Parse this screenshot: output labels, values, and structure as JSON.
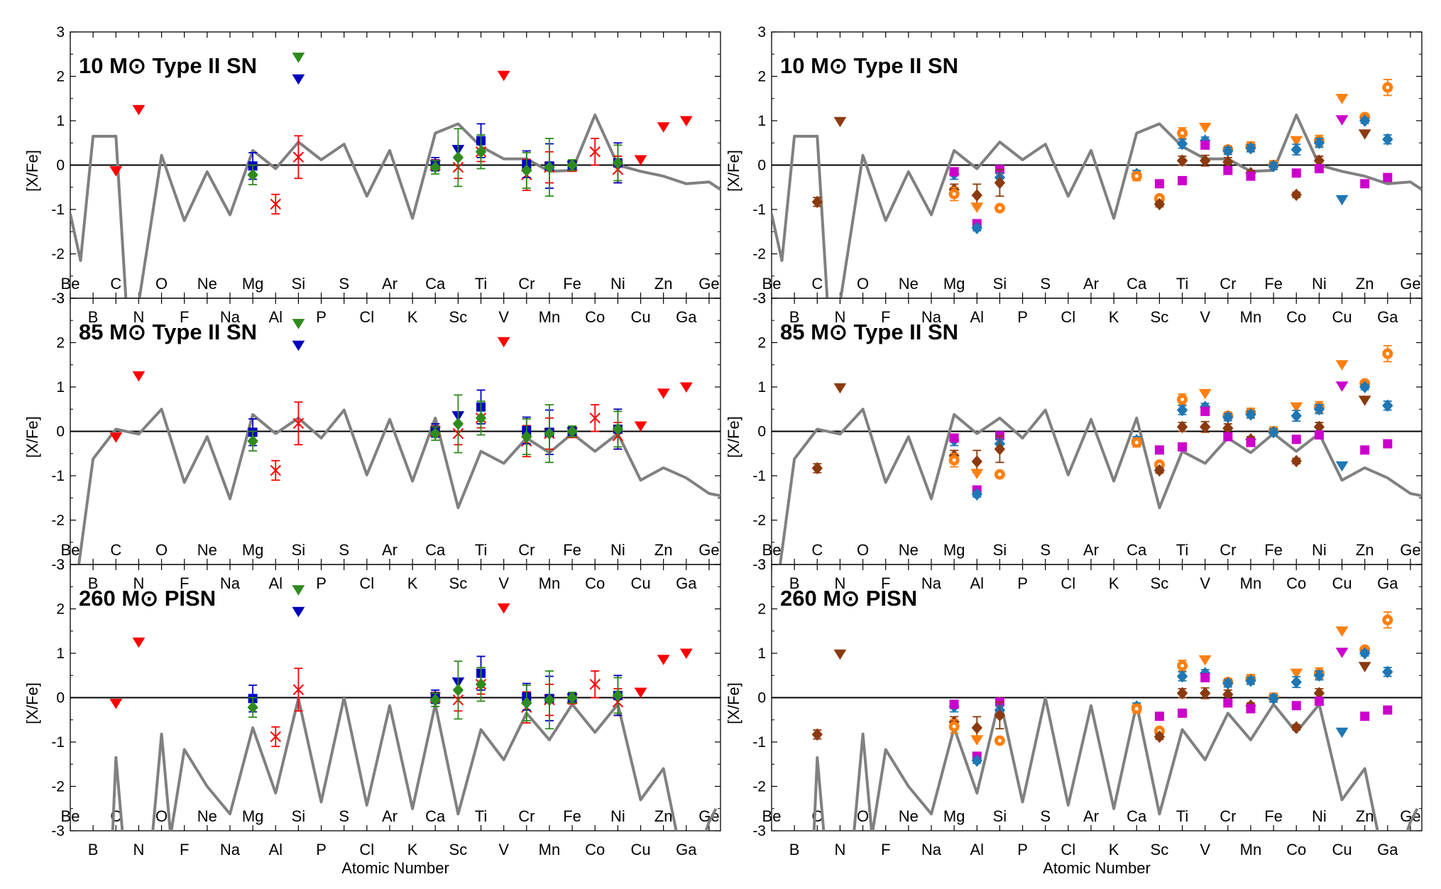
{
  "chart_data": [
    {
      "type": "line",
      "panel": "left-top",
      "title": "10 M⊙ Type II SN",
      "ylabel": "[X/Fe]",
      "xlabel": "",
      "ylim": [
        -3,
        3
      ],
      "xlim": [
        4,
        32.5
      ],
      "yticks": [
        "3",
        "2",
        "1",
        "0",
        "-1",
        "-2",
        "-3"
      ],
      "element_labels": [
        {
          "z": 4,
          "text": "Be"
        },
        {
          "z": 5,
          "text": "B"
        },
        {
          "z": 6,
          "text": "C"
        },
        {
          "z": 7,
          "text": "N"
        },
        {
          "z": 8,
          "text": "O"
        },
        {
          "z": 9,
          "text": "F"
        },
        {
          "z": 10,
          "text": "Ne"
        },
        {
          "z": 11,
          "text": "Na"
        },
        {
          "z": 12,
          "text": "Mg"
        },
        {
          "z": 13,
          "text": "Al"
        },
        {
          "z": 14,
          "text": "Si"
        },
        {
          "z": 15,
          "text": "P"
        },
        {
          "z": 16,
          "text": "S"
        },
        {
          "z": 17,
          "text": "Cl"
        },
        {
          "z": 18,
          "text": "Ar"
        },
        {
          "z": 19,
          "text": "K"
        },
        {
          "z": 20,
          "text": "Ca"
        },
        {
          "z": 21,
          "text": "Sc"
        },
        {
          "z": 22,
          "text": "Ti"
        },
        {
          "z": 23,
          "text": "V"
        },
        {
          "z": 24,
          "text": "Cr"
        },
        {
          "z": 25,
          "text": "Mn"
        },
        {
          "z": 26,
          "text": "Fe"
        },
        {
          "z": 27,
          "text": "Co"
        },
        {
          "z": 28,
          "text": "Ni"
        },
        {
          "z": 29,
          "text": "Cu"
        },
        {
          "z": 30,
          "text": "Zn"
        },
        {
          "z": 31,
          "text": "Ga"
        },
        {
          "z": 32,
          "text": "Ge"
        }
      ],
      "model": {
        "x": [
          4,
          4.45,
          5,
          6,
          6.45,
          7,
          8,
          9,
          10,
          11,
          12,
          13,
          14,
          15,
          16,
          17,
          18,
          19,
          20,
          21,
          22,
          23,
          24,
          25,
          26,
          27,
          28,
          29,
          30,
          31,
          32,
          32.5
        ],
        "y": [
          -1.1,
          -2.15,
          0.65,
          0.65,
          -3.1,
          -3.1,
          0.22,
          -1.25,
          -0.15,
          -1.12,
          0.33,
          -0.08,
          0.52,
          0.12,
          0.47,
          -0.7,
          0.33,
          -1.2,
          0.72,
          0.93,
          0.42,
          0.14,
          0.14,
          -0.14,
          -0.12,
          1.13,
          0.0,
          -0.14,
          -0.25,
          -0.42,
          -0.38,
          -0.55
        ]
      },
      "observations": [
        {
          "marker": "tri-down",
          "color": "#ff0000",
          "z": 6,
          "y": -0.13,
          "err": 0
        },
        {
          "marker": "tri-down",
          "color": "#ff0000",
          "z": 7,
          "y": 1.25,
          "err": 0
        },
        {
          "marker": "tri-down",
          "color": "#ff0000",
          "z": 23,
          "y": 2.02,
          "err": 0
        },
        {
          "marker": "tri-down",
          "color": "#ff0000",
          "z": 29,
          "y": 0.12,
          "err": 0
        },
        {
          "marker": "tri-down",
          "color": "#ff0000",
          "z": 30,
          "y": 0.86,
          "err": 0
        },
        {
          "marker": "tri-down",
          "color": "#ff0000",
          "z": 31,
          "y": 1.0,
          "err": 0
        },
        {
          "marker": "tri-down",
          "color": "#2e8b1e",
          "z": 14,
          "y": 2.43,
          "err": 0
        },
        {
          "marker": "tri-down",
          "color": "#0000bb",
          "z": 14,
          "y": 1.94,
          "err": 0
        },
        {
          "marker": "x",
          "color": "#ff0000",
          "z": 13,
          "y": -0.88,
          "err": 0.22
        },
        {
          "marker": "x",
          "color": "#ff0000",
          "z": 14,
          "y": 0.18,
          "err": 0.48
        },
        {
          "marker": "x",
          "color": "#ff0000",
          "z": 20,
          "y": 0.0,
          "err": 0.12
        },
        {
          "marker": "x",
          "color": "#ff0000",
          "z": 21,
          "y": -0.05,
          "err": 0.25
        },
        {
          "marker": "x",
          "color": "#ff0000",
          "z": 22,
          "y": 0.3,
          "err": 0.22
        },
        {
          "marker": "x",
          "color": "#ff0000",
          "z": 24,
          "y": -0.22,
          "err": 0.35
        },
        {
          "marker": "x",
          "color": "#ff0000",
          "z": 25,
          "y": -0.05,
          "err": 0.35
        },
        {
          "marker": "x",
          "color": "#ff0000",
          "z": 26,
          "y": -0.02,
          "err": 0.12
        },
        {
          "marker": "x",
          "color": "#ff0000",
          "z": 27,
          "y": 0.3,
          "err": 0.3
        },
        {
          "marker": "x",
          "color": "#ff0000",
          "z": 28,
          "y": -0.1,
          "err": 0.3
        },
        {
          "marker": "square",
          "color": "#0000bb",
          "z": 12,
          "y": -0.02,
          "err": 0.3
        },
        {
          "marker": "square",
          "color": "#0000bb",
          "z": 20,
          "y": 0.02,
          "err": 0.15
        },
        {
          "marker": "tri-down",
          "color": "#0000bb",
          "z": 21,
          "y": 0.35,
          "err": 0
        },
        {
          "marker": "square",
          "color": "#0000bb",
          "z": 22,
          "y": 0.55,
          "err": 0.38
        },
        {
          "marker": "square",
          "color": "#0000bb",
          "z": 24,
          "y": 0.02,
          "err": 0.3
        },
        {
          "marker": "square",
          "color": "#0000bb",
          "z": 25,
          "y": -0.02,
          "err": 0.5
        },
        {
          "marker": "square",
          "color": "#0000bb",
          "z": 26,
          "y": 0.0,
          "err": 0.1
        },
        {
          "marker": "square",
          "color": "#0000bb",
          "z": 28,
          "y": 0.05,
          "err": 0.45
        },
        {
          "marker": "diamond",
          "color": "#2e8b1e",
          "z": 12,
          "y": -0.22,
          "err": 0.22
        },
        {
          "marker": "diamond",
          "color": "#2e8b1e",
          "z": 20,
          "y": -0.05,
          "err": 0.15
        },
        {
          "marker": "diamond",
          "color": "#2e8b1e",
          "z": 21,
          "y": 0.17,
          "err": 0.65
        },
        {
          "marker": "diamond",
          "color": "#2e8b1e",
          "z": 22,
          "y": 0.3,
          "err": 0.38
        },
        {
          "marker": "diamond",
          "color": "#2e8b1e",
          "z": 24,
          "y": -0.12,
          "err": 0.4
        },
        {
          "marker": "diamond",
          "color": "#2e8b1e",
          "z": 25,
          "y": -0.05,
          "err": 0.65
        },
        {
          "marker": "diamond",
          "color": "#2e8b1e",
          "z": 26,
          "y": 0.0,
          "err": 0.12
        },
        {
          "marker": "diamond",
          "color": "#2e8b1e",
          "z": 28,
          "y": 0.05,
          "err": 0.4
        }
      ]
    },
    {
      "type": "line",
      "panel": "left-middle",
      "title": "85 M⊙ Type II SN",
      "ylabel": "[X/Fe]",
      "ylim": [
        -3,
        3
      ],
      "model": {
        "x": [
          4,
          4.35,
          5,
          6,
          7,
          8,
          9,
          10,
          11,
          12,
          13,
          14,
          15,
          16,
          17,
          18,
          19,
          20,
          21,
          22,
          23,
          24,
          25,
          26,
          27,
          28,
          29,
          30,
          31,
          32,
          32.5
        ],
        "y": [
          -3.1,
          -3.1,
          -0.62,
          0.05,
          -0.06,
          0.5,
          -1.15,
          -0.12,
          -1.52,
          0.38,
          -0.05,
          0.3,
          -0.15,
          0.48,
          -0.98,
          0.27,
          -1.12,
          0.3,
          -1.72,
          -0.45,
          -0.72,
          -0.15,
          -0.48,
          -0.05,
          -0.45,
          -0.05,
          -1.1,
          -0.82,
          -1.05,
          -1.4,
          -1.45
        ]
      }
    },
    {
      "type": "line",
      "panel": "left-bottom",
      "title": "260 M⊙ PISN",
      "ylabel": "[X/Fe]",
      "xlabel": "Atomic Number",
      "ylim": [
        -3,
        3
      ],
      "model": {
        "x": [
          5.85,
          6,
          6.3,
          7.6,
          8,
          8.4,
          9,
          10,
          11,
          12,
          13,
          14,
          15,
          16,
          17,
          18,
          19,
          20,
          21,
          22,
          23,
          24,
          25,
          26,
          27,
          28,
          29,
          30,
          30.6,
          31.8,
          32,
          32.3
        ],
        "y": [
          -3.1,
          -1.35,
          -3.1,
          -3.1,
          -0.82,
          -3.1,
          -1.17,
          -2.0,
          -2.62,
          -0.68,
          -2.15,
          -0.02,
          -2.35,
          0.0,
          -2.42,
          -0.18,
          -2.5,
          -0.15,
          -2.62,
          -0.72,
          -1.4,
          -0.35,
          -0.95,
          -0.15,
          -0.78,
          -0.15,
          -2.3,
          -1.6,
          -3.1,
          -3.1,
          -2.8,
          -2.5
        ]
      }
    },
    {
      "type": "line",
      "panel": "right-top",
      "title": "10 M⊙ Type II SN",
      "ylabel": "[X/Fe]",
      "xlabel": "",
      "ylim": [
        -3,
        3
      ],
      "observations": [
        {
          "marker": "tri-down",
          "color": "#8b3a0e",
          "z": 7,
          "y": 0.98,
          "err": 0
        },
        {
          "marker": "diamond",
          "color": "#8b3a0e",
          "z": 6,
          "y": -0.83,
          "err": 0.1
        },
        {
          "marker": "diamond",
          "color": "#1f77b4",
          "z": 12,
          "y": -0.2,
          "err": 0.12
        },
        {
          "marker": "square",
          "color": "#cc00cc",
          "z": 12,
          "y": -0.15,
          "err": 0.08
        },
        {
          "marker": "diamond",
          "color": "#8b3a0e",
          "z": 12,
          "y": -0.55,
          "err": 0.12
        },
        {
          "marker": "circle",
          "color": "#ff7f0e",
          "z": 12,
          "y": -0.65,
          "err": 0.15
        },
        {
          "marker": "diamond",
          "color": "#8b3a0e",
          "z": 13,
          "y": -0.68,
          "err": 0.25
        },
        {
          "marker": "tri-down",
          "color": "#ff7f0e",
          "z": 13,
          "y": -0.95,
          "err": 0
        },
        {
          "marker": "square",
          "color": "#cc00cc",
          "z": 13,
          "y": -1.32,
          "err": 0.06
        },
        {
          "marker": "diamond",
          "color": "#1f77b4",
          "z": 13,
          "y": -1.42,
          "err": 0.06
        },
        {
          "marker": "square",
          "color": "#cc00cc",
          "z": 14,
          "y": -0.1,
          "err": 0.06
        },
        {
          "marker": "diamond",
          "color": "#1f77b4",
          "z": 14,
          "y": -0.28,
          "err": 0.1
        },
        {
          "marker": "diamond",
          "color": "#8b3a0e",
          "z": 14,
          "y": -0.4,
          "err": 0.3
        },
        {
          "marker": "circle",
          "color": "#ff7f0e",
          "z": 14,
          "y": -0.97,
          "err": 0.05
        },
        {
          "marker": "diamond",
          "color": "#1f77b4",
          "z": 20,
          "y": -0.2,
          "err": 0.08
        },
        {
          "marker": "circle",
          "color": "#ff7f0e",
          "z": 20,
          "y": -0.25,
          "err": 0.1
        },
        {
          "marker": "square",
          "color": "#cc00cc",
          "z": 21,
          "y": -0.42,
          "err": 0.06
        },
        {
          "marker": "circle",
          "color": "#ff7f0e",
          "z": 21,
          "y": -0.75,
          "err": 0.06
        },
        {
          "marker": "diamond",
          "color": "#8b3a0e",
          "z": 21,
          "y": -0.88,
          "err": 0.06
        },
        {
          "marker": "circle",
          "color": "#ff7f0e",
          "z": 22,
          "y": 0.72,
          "err": 0.12
        },
        {
          "marker": "diamond",
          "color": "#1f77b4",
          "z": 22,
          "y": 0.48,
          "err": 0.1
        },
        {
          "marker": "diamond",
          "color": "#8b3a0e",
          "z": 22,
          "y": 0.1,
          "err": 0.1
        },
        {
          "marker": "square",
          "color": "#cc00cc",
          "z": 22,
          "y": -0.35,
          "err": 0.06
        },
        {
          "marker": "tri-down",
          "color": "#ff7f0e",
          "z": 23,
          "y": 0.85,
          "err": 0
        },
        {
          "marker": "diamond",
          "color": "#1f77b4",
          "z": 23,
          "y": 0.55,
          "err": 0.08
        },
        {
          "marker": "square",
          "color": "#cc00cc",
          "z": 23,
          "y": 0.45,
          "err": 0.06
        },
        {
          "marker": "diamond",
          "color": "#8b3a0e",
          "z": 23,
          "y": 0.1,
          "err": 0.12
        },
        {
          "marker": "circle",
          "color": "#ff7f0e",
          "z": 24,
          "y": 0.35,
          "err": 0.08
        },
        {
          "marker": "diamond",
          "color": "#1f77b4",
          "z": 24,
          "y": 0.32,
          "err": 0.08
        },
        {
          "marker": "diamond",
          "color": "#8b3a0e",
          "z": 24,
          "y": 0.07,
          "err": 0.1
        },
        {
          "marker": "square",
          "color": "#cc00cc",
          "z": 24,
          "y": -0.12,
          "err": 0.06
        },
        {
          "marker": "circle",
          "color": "#ff7f0e",
          "z": 25,
          "y": 0.42,
          "err": 0.1
        },
        {
          "marker": "diamond",
          "color": "#1f77b4",
          "z": 25,
          "y": 0.38,
          "err": 0.08
        },
        {
          "marker": "diamond",
          "color": "#8b3a0e",
          "z": 25,
          "y": -0.18,
          "err": 0.06
        },
        {
          "marker": "square",
          "color": "#cc00cc",
          "z": 25,
          "y": -0.25,
          "err": 0.06
        },
        {
          "marker": "circle",
          "color": "#ff7f0e",
          "z": 26,
          "y": 0.0,
          "err": 0.1
        },
        {
          "marker": "diamond",
          "color": "#1f77b4",
          "z": 26,
          "y": -0.02,
          "err": 0.08
        },
        {
          "marker": "tri-down",
          "color": "#ff7f0e",
          "z": 27,
          "y": 0.55,
          "err": 0
        },
        {
          "marker": "diamond",
          "color": "#1f77b4",
          "z": 27,
          "y": 0.35,
          "err": 0.12
        },
        {
          "marker": "square",
          "color": "#cc00cc",
          "z": 27,
          "y": -0.18,
          "err": 0.06
        },
        {
          "marker": "diamond",
          "color": "#8b3a0e",
          "z": 27,
          "y": -0.67,
          "err": 0.06
        },
        {
          "marker": "circle",
          "color": "#ff7f0e",
          "z": 28,
          "y": 0.55,
          "err": 0.12
        },
        {
          "marker": "diamond",
          "color": "#1f77b4",
          "z": 28,
          "y": 0.5,
          "err": 0.1
        },
        {
          "marker": "diamond",
          "color": "#8b3a0e",
          "z": 28,
          "y": 0.1,
          "err": 0.1
        },
        {
          "marker": "square",
          "color": "#cc00cc",
          "z": 28,
          "y": -0.08,
          "err": 0.06
        },
        {
          "marker": "tri-down",
          "color": "#ff7f0e",
          "z": 29,
          "y": 1.5,
          "err": 0
        },
        {
          "marker": "tri-down",
          "color": "#cc00cc",
          "z": 29,
          "y": 1.02,
          "err": 0
        },
        {
          "marker": "tri-down",
          "color": "#1f77b4",
          "z": 29,
          "y": -0.78,
          "err": 0
        },
        {
          "marker": "circle",
          "color": "#ff7f0e",
          "z": 30,
          "y": 1.08,
          "err": 0.06
        },
        {
          "marker": "diamond",
          "color": "#1f77b4",
          "z": 30,
          "y": 1.0,
          "err": 0.06
        },
        {
          "marker": "tri-down",
          "color": "#8b3a0e",
          "z": 30,
          "y": 0.7,
          "err": 0
        },
        {
          "marker": "square",
          "color": "#cc00cc",
          "z": 30,
          "y": -0.42,
          "err": 0.06
        },
        {
          "marker": "circle",
          "color": "#ff7f0e",
          "z": 31,
          "y": 1.75,
          "err": 0.18
        },
        {
          "marker": "diamond",
          "color": "#1f77b4",
          "z": 31,
          "y": 0.58,
          "err": 0.1
        },
        {
          "marker": "square",
          "color": "#cc00cc",
          "z": 31,
          "y": -0.28,
          "err": 0.08
        }
      ]
    },
    {
      "type": "line",
      "panel": "right-middle",
      "title": "85 M⊙ Type II SN",
      "ylabel": "[X/Fe]",
      "ylim": [
        -3,
        3
      ]
    },
    {
      "type": "line",
      "panel": "right-bottom",
      "title": "260 M⊙ PISN",
      "ylabel": "[X/Fe]",
      "xlabel": "Atomic Number",
      "ylim": [
        -3,
        3
      ]
    }
  ],
  "colors": {
    "model_line": "#808080",
    "red": "#ff0000",
    "green": "#2e8b1e",
    "blue": "#0000bb",
    "orange": "#ff7f0e",
    "teal": "#1f77b4",
    "magenta": "#cc00cc",
    "brown": "#8b3a0e"
  }
}
